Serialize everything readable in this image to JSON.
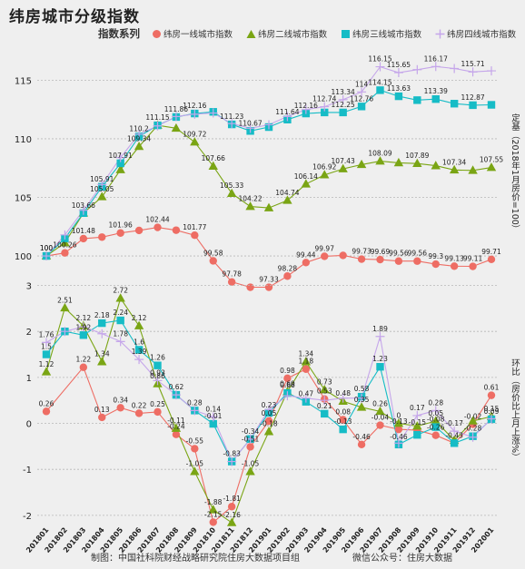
{
  "title": "纬房城市分级指数",
  "legend_title": "指数系列",
  "footer": {
    "left": "制图：中国社科院财经战略研究院住房大数据项目组",
    "right": "微信公众号：住房大数据"
  },
  "colors": {
    "tier1": "#ee6d64",
    "tier2": "#7aa514",
    "tier3": "#16bcc6",
    "tier4": "#c5a6ea",
    "background": "#efefef",
    "grid": "#b8b8b8"
  },
  "chart_data": [
    {
      "type": "line",
      "panel": "index level",
      "ylabel": "定基（2018年1月房价=100）",
      "ylim": [
        98.3,
        117.2
      ],
      "yticks": [
        100,
        105,
        110,
        115
      ],
      "x": [
        "201801",
        "201802",
        "201803",
        "201804",
        "201805",
        "201806",
        "201807",
        "201808",
        "201809",
        "201810",
        "201811",
        "201812",
        "201901",
        "201902",
        "201903",
        "201904",
        "201905",
        "201906",
        "201907",
        "201908",
        "201909",
        "201910",
        "201911",
        "201912",
        "202001"
      ],
      "series": [
        {
          "name": "纬房一线城市指数",
          "marker": "circle",
          "color": "#ee6d64",
          "values": [
            100,
            100.26,
            101.48,
            101.61,
            101.96,
            102.18,
            102.44,
            102.2,
            101.77,
            99.58,
            97.78,
            97.33,
            97.33,
            98.28,
            99.44,
            99.97,
            100.05,
            99.73,
            99.69,
            99.56,
            99.56,
            99.3,
            99.13,
            99.11,
            99.71
          ],
          "labels": [
            "100",
            "100.26",
            "101.48",
            "",
            "101.96",
            "",
            "102.44",
            "",
            "101.77",
            "99.58",
            "97.78",
            "",
            "97.33",
            "98.28",
            "99.44",
            "99.97",
            "",
            "99.73",
            "99.69",
            "99.56",
            "99.56",
            "99.3",
            "99.13",
            "99.11",
            "99.71"
          ]
        },
        {
          "name": "纬房二线城市指数",
          "marker": "triangle",
          "color": "#7aa514",
          "values": [
            100,
            101.12,
            103.66,
            105.05,
            107.36,
            109.34,
            111.15,
            110.9,
            109.72,
            107.66,
            105.33,
            104.22,
            104.1,
            104.74,
            106.14,
            106.92,
            107.43,
            107.8,
            108.09,
            107.95,
            107.89,
            107.7,
            107.34,
            107.3,
            107.55
          ],
          "labels": [
            "",
            "",
            "",
            "105.05",
            "",
            "109.34",
            "",
            "",
            "109.72",
            "107.66",
            "105.33",
            "104.22",
            "",
            "104.74",
            "106.14",
            "106.92",
            "107.43",
            "",
            "108.09",
            "",
            "107.89",
            "",
            "107.34",
            "",
            "107.55"
          ]
        },
        {
          "name": "纬房三线城市指数",
          "marker": "square",
          "color": "#16bcc6",
          "values": [
            100,
            101.5,
            103.66,
            105.91,
            107.91,
            110.2,
            111.15,
            111.86,
            112.16,
            112.3,
            111.23,
            110.67,
            111.0,
            111.64,
            112.16,
            112.25,
            112.25,
            112.76,
            114.15,
            113.63,
            113.3,
            113.39,
            113.0,
            112.87,
            112.9
          ],
          "labels": [
            "100",
            "",
            "103.66",
            "105.91",
            "107.91",
            "110.2",
            "111.15",
            "111.86",
            "112.16",
            "",
            "111.23",
            "110.67",
            "",
            "111.64",
            "112.16",
            "",
            "112.25",
            "112.76",
            "114.15",
            "113.63",
            "",
            "113.39",
            "",
            "112.87",
            ""
          ]
        },
        {
          "name": "纬房四线城市指数",
          "marker": "cross",
          "color": "#c5a6ea",
          "values": [
            100,
            101.8,
            103.9,
            106.1,
            108.4,
            110.4,
            111.1,
            111.9,
            112.1,
            112.2,
            111.3,
            110.9,
            111.2,
            111.9,
            112.5,
            112.74,
            113.34,
            114,
            116.15,
            115.65,
            115.9,
            116.17,
            116.0,
            115.71,
            115.8
          ],
          "labels": [
            "",
            "",
            "",
            "",
            "",
            "",
            "",
            "",
            "",
            "",
            "",
            "",
            "",
            "",
            "",
            "112.74",
            "113.34",
            "114",
            "116.15",
            "115.65",
            "",
            "116.17",
            "",
            "115.71",
            ""
          ]
        }
      ]
    },
    {
      "type": "line",
      "panel": "month-on-month change",
      "ylabel": "环比（房价比上月上涨%）",
      "ylim": [
        -2.2,
        3.05
      ],
      "yticks": [
        -2,
        -1,
        0,
        1,
        2,
        3
      ],
      "x": [
        "201801",
        "201802",
        "201803",
        "201804",
        "201805",
        "201806",
        "201807",
        "201808",
        "201809",
        "201810",
        "201811",
        "201812",
        "201901",
        "201902",
        "201903",
        "201904",
        "201905",
        "201906",
        "201907",
        "201908",
        "201909",
        "201910",
        "201911",
        "201912",
        "202001"
      ],
      "series": [
        {
          "name": "纬房一线城市指数",
          "marker": "circle",
          "color": "#ee6d64",
          "values": [
            0.26,
            null,
            1.22,
            0.13,
            0.34,
            0.22,
            0.25,
            -0.24,
            -0.55,
            -2.15,
            -1.81,
            -0.51,
            0.05,
            0.98,
            1.18,
            0.53,
            0.08,
            -0.46,
            -0.04,
            -0.13,
            -0.15,
            -0.26,
            -0.43,
            -0.02,
            0.61
          ],
          "labels": [
            "0.26",
            "",
            "1.22",
            "0.13",
            "0.34",
            "0.22",
            "0.25",
            "-0.24",
            "-0.55",
            "-2.15",
            "-1.81",
            "-0.51",
            "0.05",
            "0.98",
            "1.18",
            "0.53",
            "0.08",
            "-0.46",
            "-0.04",
            "-0.13",
            "-0.15",
            "-0.26",
            "-0.43",
            "-0.02",
            "0.61"
          ]
        },
        {
          "name": "纬房二线城市指数",
          "marker": "triangle",
          "color": "#7aa514",
          "values": [
            1.12,
            2.51,
            2.12,
            1.34,
            2.72,
            2.12,
            0.86,
            -0.11,
            -1.05,
            -1.88,
            -2.16,
            -1.05,
            -0.18,
            0.69,
            1.34,
            0.73,
            0.48,
            0.35,
            0.26,
            0.0,
            -0.06,
            0.05,
            -0.37,
            0.05,
            0.15
          ],
          "labels": [
            "1.12",
            "2.51",
            "2.12",
            "1.34",
            "2.72",
            "2.12",
            "0.86",
            "-0.11",
            "-1.05",
            "-1.88",
            "-2.16",
            "-1.05",
            "-0.18",
            "0.69",
            "1.34",
            "0.73",
            "0.48",
            "0.35",
            "0.26",
            "0",
            "",
            "0.05",
            "",
            "",
            "0.15"
          ]
        },
        {
          "name": "纬房三线城市指数",
          "marker": "square",
          "color": "#16bcc6",
          "values": [
            1.5,
            2.0,
            1.92,
            2.18,
            2.24,
            1.6,
            1.26,
            0.62,
            0.28,
            -0.01,
            -0.83,
            -0.34,
            0.23,
            0.66,
            0.47,
            0.21,
            -0.13,
            0.58,
            1.23,
            -0.46,
            -0.25,
            -0.08,
            -0.43,
            -0.28,
            0.09
          ],
          "labels": [
            "1.5",
            "",
            "1.92",
            "2.18",
            "2.24",
            "1.6",
            "1.26",
            "0.62",
            "0.28",
            "-0.01",
            "-0.83",
            "-0.34",
            "0.23",
            "0.66",
            "0.47",
            "0.21",
            "-0.13",
            "0.58",
            "1.23",
            "-0.46",
            "",
            "-0.08",
            "",
            "-0.28",
            "0.09"
          ]
        },
        {
          "name": "纬房四线城市指数",
          "marker": "cross",
          "color": "#c5a6ea",
          "values": [
            1.76,
            2.0,
            2.1,
            1.95,
            1.78,
            1.39,
            0.93,
            0.62,
            0.28,
            0.14,
            -0.83,
            -0.34,
            0.3,
            0.6,
            0.55,
            0.5,
            0.55,
            0.55,
            1.89,
            -0.43,
            0.17,
            0.28,
            -0.17,
            -0.3,
            0.1
          ],
          "labels": [
            "1.76",
            "",
            "",
            "",
            "1.78",
            "1.39",
            "0.93",
            "",
            "",
            "0.14",
            "",
            "",
            "",
            "",
            "",
            "",
            "",
            "",
            "1.89",
            "",
            "0.17",
            "0.28",
            "-0.17",
            "",
            ""
          ]
        }
      ]
    }
  ]
}
